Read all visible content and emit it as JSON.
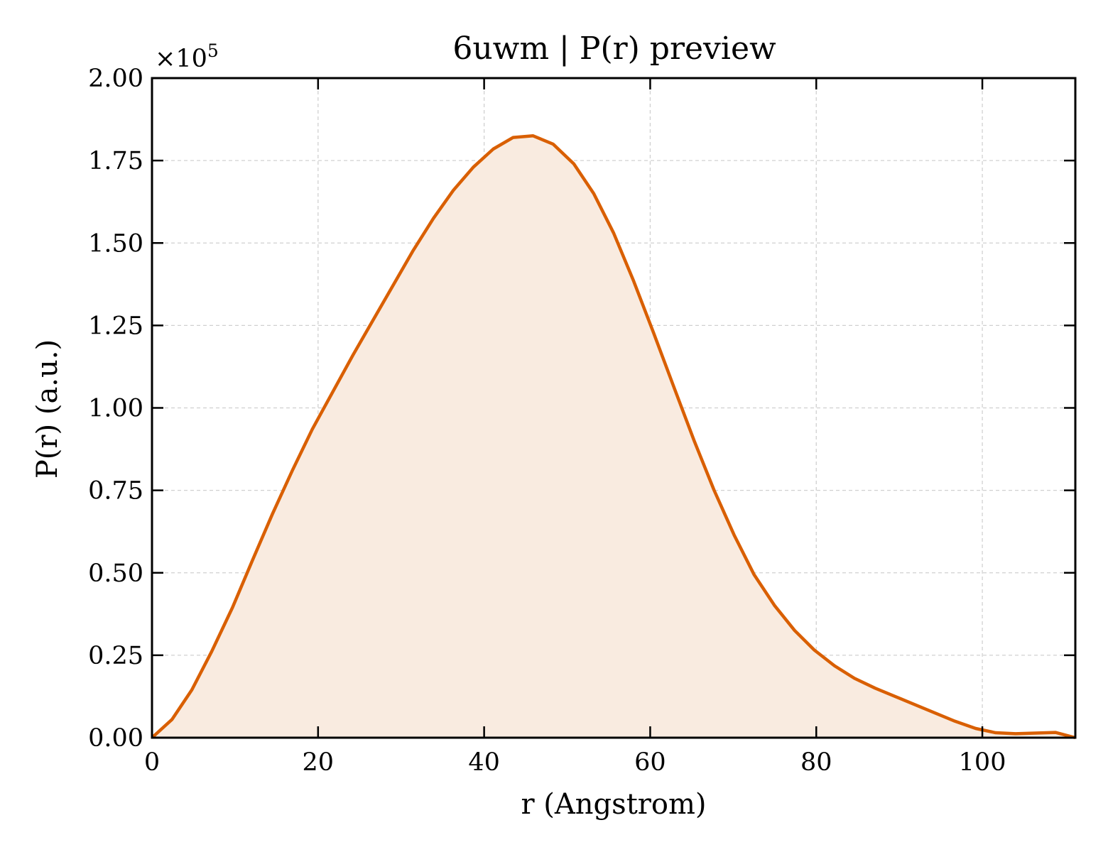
{
  "chart_data": {
    "type": "area",
    "title": "6uwm | P(r) preview",
    "xlabel": "r (Angstrom)",
    "ylabel": "P(r) (a.u.)",
    "y_offset_label": {
      "base": "×10",
      "exponent": "5"
    },
    "xlim": [
      0,
      111.2
    ],
    "ylim": [
      0,
      2.0
    ],
    "y_scale_factor": 100000,
    "x_ticks": [
      0,
      20,
      40,
      60,
      80,
      100
    ],
    "x_tick_labels": [
      "0",
      "20",
      "40",
      "60",
      "80",
      "100"
    ],
    "y_ticks": [
      0,
      0.25,
      0.5,
      0.75,
      1.0,
      1.25,
      1.5,
      1.75,
      2.0
    ],
    "y_tick_labels": [
      "0.00",
      "0.25",
      "0.50",
      "0.75",
      "1.00",
      "1.25",
      "1.50",
      "1.75",
      "2.00"
    ],
    "grid": true,
    "line_color": "#d95f02",
    "fill_color": "#f9ebe0",
    "series": [
      {
        "x": [
          0,
          2.4,
          4.8,
          7.2,
          9.7,
          12.1,
          14.5,
          16.9,
          19.3,
          21.8,
          24.2,
          26.6,
          29.0,
          31.4,
          33.9,
          36.3,
          38.7,
          41.1,
          43.5,
          45.9,
          48.3,
          50.8,
          53.2,
          55.6,
          58.0,
          60.4,
          62.9,
          65.3,
          67.7,
          70.1,
          72.5,
          75.0,
          77.4,
          79.8,
          82.2,
          84.6,
          87.1,
          89.5,
          91.9,
          94.3,
          96.7,
          99.2,
          101.6,
          104.0,
          106.4,
          108.8,
          111.2
        ],
        "values": [
          0.0,
          0.055,
          0.145,
          0.262,
          0.395,
          0.538,
          0.678,
          0.81,
          0.935,
          1.05,
          1.16,
          1.265,
          1.37,
          1.475,
          1.575,
          1.66,
          1.73,
          1.785,
          1.82,
          1.825,
          1.8,
          1.74,
          1.65,
          1.53,
          1.385,
          1.228,
          1.06,
          0.9,
          0.75,
          0.615,
          0.495,
          0.4,
          0.325,
          0.265,
          0.218,
          0.18,
          0.15,
          0.125,
          0.1,
          0.075,
          0.05,
          0.028,
          0.015,
          0.012,
          0.014,
          0.016,
          0.0
        ]
      }
    ]
  }
}
